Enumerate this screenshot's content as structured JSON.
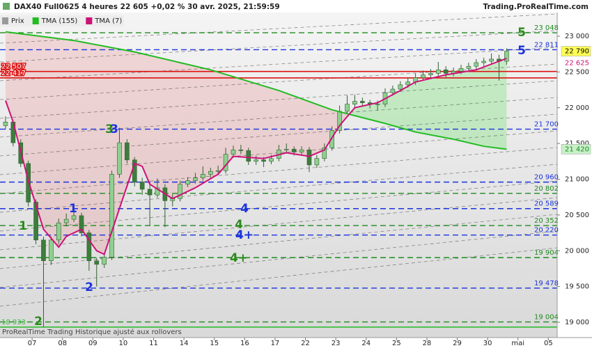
{
  "header": {
    "title": "DAX40 Full0625 4 heures 22 605 +0,02 % 30 avr. 2025, 21:59:59",
    "brand": "Trading.ProRealTime.com"
  },
  "footer": "ProRealTime Trading Historique ajusté aux rollovers",
  "chart_data": {
    "type": "candlestick",
    "xlim": [
      -0.73,
      72.66
    ],
    "ylim": [
      18786,
      23331
    ],
    "xticks": [
      {
        "value": 3.5,
        "label": "07"
      },
      {
        "value": 7.5,
        "label": "08"
      },
      {
        "value": 11.5,
        "label": "09"
      },
      {
        "value": 15.5,
        "label": "10"
      },
      {
        "value": 19.5,
        "label": "11"
      },
      {
        "value": 23.5,
        "label": "14"
      },
      {
        "value": 27.5,
        "label": "15"
      },
      {
        "value": 31.5,
        "label": "16"
      },
      {
        "value": 35.5,
        "label": "17"
      },
      {
        "value": 39.5,
        "label": "22"
      },
      {
        "value": 43.5,
        "label": "23"
      },
      {
        "value": 47.5,
        "label": "24"
      },
      {
        "value": 51.5,
        "label": "25"
      },
      {
        "value": 55.5,
        "label": "28"
      },
      {
        "value": 59.5,
        "label": "29"
      },
      {
        "value": 63.5,
        "label": "30"
      },
      {
        "value": 67.5,
        "label": "mai"
      },
      {
        "value": 71.5,
        "label": "05"
      }
    ],
    "yticks": [
      {
        "value": 19000,
        "label": "19 000"
      },
      {
        "value": 19500,
        "label": "19 500"
      },
      {
        "value": 20000,
        "label": "20 000"
      },
      {
        "value": 20500,
        "label": "20 500"
      },
      {
        "value": 21000,
        "label": "21 000"
      },
      {
        "value": 21500,
        "label": "21 500"
      },
      {
        "value": 22000,
        "label": "22 000"
      },
      {
        "value": 22500,
        "label": "22 500"
      },
      {
        "value": 23000,
        "label": "23 000"
      }
    ],
    "series": [
      {
        "name": "Prix",
        "up_color": "#8fd08f",
        "down_color": "#3d7d3d",
        "color": "#9a9a9a",
        "values": [
          [
            21750,
            21880,
            21700,
            21800
          ],
          [
            21800,
            21830,
            21460,
            21510
          ],
          [
            21510,
            21560,
            21170,
            21220
          ],
          [
            21220,
            21260,
            20620,
            20680
          ],
          [
            20680,
            20720,
            20090,
            20150
          ],
          [
            20150,
            20200,
            18933,
            19860
          ],
          [
            19860,
            20200,
            19800,
            20150
          ],
          [
            20150,
            20450,
            20100,
            20390
          ],
          [
            20390,
            20520,
            20340,
            20440
          ],
          [
            20440,
            20620,
            20400,
            20490
          ],
          [
            20490,
            20530,
            20200,
            20250
          ],
          [
            20250,
            20290,
            19720,
            19860
          ],
          [
            19860,
            19900,
            19500,
            19810
          ],
          [
            19810,
            19960,
            19760,
            19910
          ],
          [
            19910,
            21120,
            19870,
            21070
          ],
          [
            21070,
            21720,
            21020,
            21510
          ],
          [
            21510,
            21560,
            21220,
            21270
          ],
          [
            21270,
            21310,
            20900,
            20960
          ],
          [
            20960,
            21020,
            20780,
            20860
          ],
          [
            20860,
            20920,
            20350,
            20780
          ],
          [
            20780,
            21010,
            20740,
            20880
          ],
          [
            20880,
            20930,
            20330,
            20700
          ],
          [
            20700,
            20790,
            20620,
            20730
          ],
          [
            20730,
            20980,
            20690,
            20930
          ],
          [
            20930,
            21030,
            20890,
            20980
          ],
          [
            20980,
            21090,
            20940,
            21020
          ],
          [
            21020,
            21180,
            20980,
            21070
          ],
          [
            21070,
            21160,
            21020,
            21110
          ],
          [
            21110,
            21190,
            21060,
            21120
          ],
          [
            21120,
            21440,
            21080,
            21350
          ],
          [
            21350,
            21470,
            21300,
            21410
          ],
          [
            21410,
            21480,
            21350,
            21400
          ],
          [
            21400,
            21440,
            21200,
            21250
          ],
          [
            21250,
            21330,
            21200,
            21270
          ],
          [
            21270,
            21310,
            21170,
            21250
          ],
          [
            21250,
            21340,
            21210,
            21290
          ],
          [
            21290,
            21480,
            21250,
            21410
          ],
          [
            21410,
            21500,
            21370,
            21420
          ],
          [
            21420,
            21460,
            21330,
            21380
          ],
          [
            21380,
            21460,
            21340,
            21410
          ],
          [
            21410,
            21450,
            21100,
            21200
          ],
          [
            21200,
            21340,
            21160,
            21290
          ],
          [
            21290,
            21500,
            21250,
            21440
          ],
          [
            21440,
            21740,
            21400,
            21680
          ],
          [
            21680,
            22030,
            21640,
            21950
          ],
          [
            21950,
            22170,
            21910,
            22050
          ],
          [
            22050,
            22180,
            22000,
            22090
          ],
          [
            22090,
            22140,
            22020,
            22070
          ],
          [
            22070,
            22110,
            21990,
            22050
          ],
          [
            22050,
            22100,
            21960,
            22050
          ],
          [
            22050,
            22270,
            22010,
            22210
          ],
          [
            22210,
            22310,
            22170,
            22260
          ],
          [
            22260,
            22370,
            22220,
            22320
          ],
          [
            22320,
            22420,
            22280,
            22360
          ],
          [
            22360,
            22480,
            22320,
            22420
          ],
          [
            22420,
            22520,
            22380,
            22460
          ],
          [
            22460,
            22540,
            22400,
            22480
          ],
          [
            22480,
            22640,
            22440,
            22530
          ],
          [
            22530,
            22580,
            22420,
            22480
          ],
          [
            22480,
            22560,
            22440,
            22510
          ],
          [
            22510,
            22600,
            22470,
            22550
          ],
          [
            22550,
            22630,
            22510,
            22580
          ],
          [
            22580,
            22680,
            22540,
            22630
          ],
          [
            22630,
            22700,
            22580,
            22650
          ],
          [
            22650,
            22760,
            22610,
            22680
          ],
          [
            22680,
            22740,
            22380,
            22650
          ],
          [
            22650,
            22830,
            22600,
            22790
          ]
        ]
      },
      {
        "name": "TMA (155)",
        "color": "#22bb22",
        "x": [
          0,
          9,
          17,
          27,
          36,
          43,
          50,
          54,
          59,
          63,
          66
        ],
        "values": [
          23060,
          22940,
          22780,
          22530,
          22240,
          21970,
          21780,
          21660,
          21560,
          21460,
          21420
        ]
      },
      {
        "name": "TMA (7)",
        "color": "#cc1177",
        "x": [
          0,
          1,
          3,
          5,
          7,
          8,
          10,
          12,
          13,
          15,
          17,
          18,
          19,
          22,
          25,
          28,
          30,
          34,
          37,
          40,
          42,
          44,
          46,
          49,
          52,
          54,
          58,
          62,
          65,
          66
        ],
        "values": [
          22100,
          21800,
          20980,
          20300,
          20050,
          20200,
          20300,
          20000,
          19950,
          20590,
          21220,
          21180,
          20930,
          20730,
          20880,
          21070,
          21320,
          21290,
          21370,
          21320,
          21410,
          21750,
          22000,
          22070,
          22240,
          22360,
          22460,
          22530,
          22650,
          22690
        ]
      }
    ],
    "levels": [
      {
        "value": 23048,
        "label": "23 048",
        "color": "#1e8a1e",
        "style": "dashed",
        "side": "right"
      },
      {
        "value": 22811,
        "label": "22 811",
        "color": "#1a33dd",
        "style": "dashed",
        "side": "right"
      },
      {
        "value": 21700,
        "label": "21 700",
        "color": "#1a33dd",
        "style": "dashed",
        "side": "right"
      },
      {
        "value": 20960,
        "label": "20 960",
        "color": "#1a33dd",
        "style": "dashed",
        "side": "right"
      },
      {
        "value": 20802,
        "label": "20 802",
        "color": "#1e8a1e",
        "style": "dashed",
        "side": "right"
      },
      {
        "value": 20589,
        "label": "20 589",
        "color": "#1a33dd",
        "style": "dashed",
        "side": "right"
      },
      {
        "value": 20352,
        "label": "20 352",
        "color": "#1e8a1e",
        "style": "dashed",
        "side": "right"
      },
      {
        "value": 20220,
        "label": "20 220",
        "color": "#1a33dd",
        "style": "dashed",
        "side": "right"
      },
      {
        "value": 19904,
        "label": "19 904",
        "color": "#1e8a1e",
        "style": "dashed",
        "side": "right"
      },
      {
        "value": 19478,
        "label": "19 478",
        "color": "#1a33dd",
        "style": "dashed",
        "side": "right"
      },
      {
        "value": 19004,
        "label": "19 004",
        "color": "#1e8a1e",
        "style": "dashed",
        "side": "right"
      },
      {
        "value": 22507,
        "label": "22 507",
        "color": "#dd1111",
        "style": "solid",
        "side": "left"
      },
      {
        "value": 22417,
        "label": "22 417",
        "color": "#dd1111",
        "style": "solid",
        "side": "left"
      },
      {
        "value": 18933,
        "label": "18 933",
        "color": "#33bb33",
        "style": "solid",
        "side": "left"
      }
    ],
    "markers": [
      {
        "value": 22790,
        "label": "22 790",
        "color": "#ffff55",
        "text_color": "#000000"
      },
      {
        "value": 22625,
        "label": "22 625",
        "color": "#ffffff",
        "text_color": "#cc1177"
      },
      {
        "value": 21420,
        "label": "21 420",
        "color": "#c8f0c8",
        "text_color": "#1e8a1e"
      }
    ],
    "annotations": [
      {
        "text": "1",
        "color": "#2a8a1a"
      },
      {
        "text": "1",
        "color": "#1a33dd"
      },
      {
        "text": "2",
        "color": "#1a33dd"
      },
      {
        "text": "2",
        "color": "#2a8a1a"
      },
      {
        "text": "3",
        "color": "#2a8a1a"
      },
      {
        "text": "3",
        "color": "#1a33dd"
      },
      {
        "text": "4",
        "color": "#1a33dd"
      },
      {
        "text": "4",
        "color": "#2a8a1a"
      },
      {
        "text": "4+",
        "color": "#1a33dd"
      },
      {
        "text": "4+",
        "color": "#2a8a1a"
      },
      {
        "text": "5",
        "color": "#2a8a1a"
      },
      {
        "text": "5",
        "color": "#1a33dd"
      }
    ]
  }
}
